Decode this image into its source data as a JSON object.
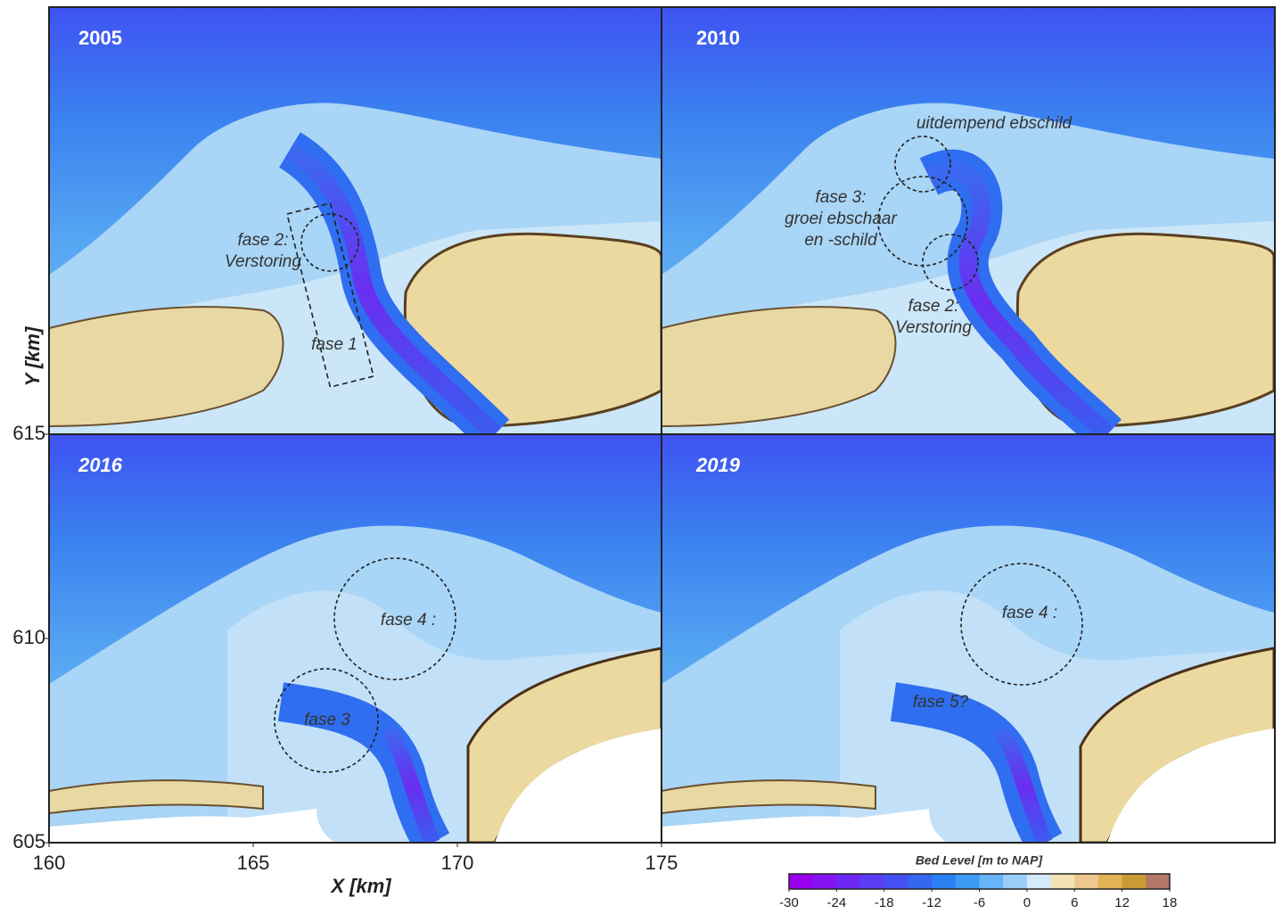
{
  "chart_data": {
    "type": "map",
    "x_label": "X [km]",
    "y_label": "Y [km]",
    "xlim": [
      160,
      175
    ],
    "xticks": [
      160,
      165,
      170,
      175
    ],
    "ylim": [
      605,
      615
    ],
    "yticks": [
      605,
      610,
      615
    ],
    "colorbar": {
      "title": "Bed Level  [m to NAP]",
      "lim": [
        -30,
        18
      ],
      "ticks": [
        -30,
        -24,
        -18,
        -12,
        -6,
        0,
        6,
        12,
        18
      ],
      "colors": [
        "#9a00f0",
        "#8514f2",
        "#6e28f4",
        "#5a3cf4",
        "#4650f2",
        "#3566f0",
        "#2a80f0",
        "#3c9af2",
        "#64b4f6",
        "#9acdf7",
        "#d4eaf9",
        "#f3e2b4",
        "#ecc78e",
        "#e2b257",
        "#c89c34",
        "#b47868"
      ]
    },
    "panels": [
      {
        "year": "2005",
        "annotations": [
          [
            "fase 2:",
            "Verstoring"
          ],
          [
            "fase 1"
          ]
        ]
      },
      {
        "year": "2010",
        "annotations": [
          [
            "uitdempend ebschild"
          ],
          [
            "fase 3:",
            "groei ebschaar",
            "en -schild"
          ],
          [
            "fase 2:",
            "Verstoring"
          ]
        ]
      },
      {
        "year": "2016",
        "annotations": [
          [
            "fase 4 :"
          ],
          [
            "fase 3"
          ]
        ]
      },
      {
        "year": "2019",
        "annotations": [
          [
            "fase 4 :"
          ],
          [
            "fase 5?"
          ]
        ]
      }
    ]
  }
}
